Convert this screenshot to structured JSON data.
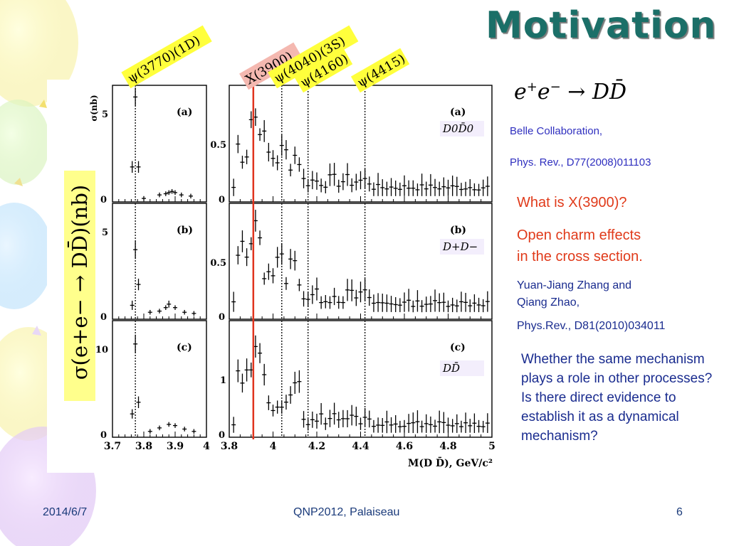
{
  "slide": {
    "title": "Motivation",
    "equation": {
      "pre": "e",
      "plus": "+",
      "e2": "e",
      "minus": "−",
      "arrow": "→ D",
      "dbar": "D̄"
    },
    "belle_collab": "Belle Collaboration,",
    "belle_ref": "Phys. Rev., D77(2008)011103",
    "question1": "What is X(3900)?",
    "question2_line1": "Open charm effects",
    "question2_line2": "in the cross section.",
    "authors_line1": "Yuan-Jiang Zhang and",
    "authors_line2": "Qiang Zhao,",
    "authors_ref": "Phys.Rev., D81(2010)034011",
    "question3": "Whether the same mechanism plays a role in other processes? Is there direct evidence to establish it as a dynamical mechanism?",
    "ylabel": "σ(e+e− → DD̄)(nb)"
  },
  "figure": {
    "resonance_labels": [
      "ψ(3770)(1D)",
      "X(3900)",
      "ψ(4040)(3S)",
      "ψ(4160)",
      "ψ(4415)"
    ],
    "panel_labels": [
      "(a)",
      "(b)",
      "(c)"
    ],
    "channel_labels": [
      "D0D̄0",
      "D+D−",
      "DD̄"
    ],
    "left_yaxis_title": "σ(nb)",
    "left_yticks": [
      [
        "0",
        "5"
      ],
      [
        "0",
        "5"
      ],
      [
        "0",
        "10"
      ]
    ],
    "right_yticks": [
      [
        "0",
        "0.5"
      ],
      [
        "0",
        "0.5"
      ],
      [
        "0",
        "1"
      ]
    ],
    "left_xticks": [
      "3.7",
      "3.8",
      "3.9",
      "4"
    ],
    "right_xticks": [
      "3.8",
      "4",
      "4.2",
      "4.4",
      "4.6",
      "4.8",
      "5"
    ],
    "xaxis_title": "M(D D̄), GeV/c²",
    "colors": {
      "x3900_line": "#e0341e",
      "label_highlight": "#ffff3c",
      "x_label_bg": "#f4b8b0"
    }
  },
  "footer": {
    "date": "2014/6/7",
    "conference": "QNP2012, Palaiseau",
    "page": "6"
  }
}
